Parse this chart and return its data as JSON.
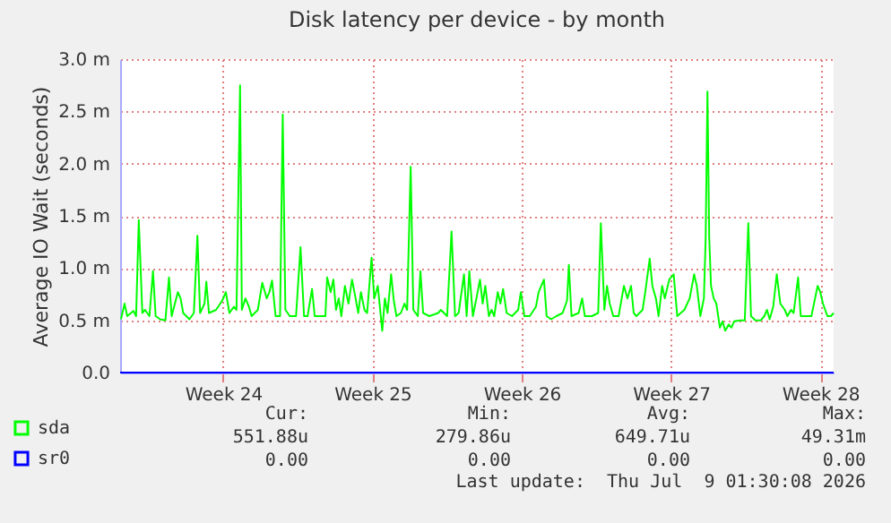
{
  "chart_data": {
    "type": "line",
    "title": "Disk latency per device - by month",
    "ylabel": "Average IO Wait (seconds)",
    "xlim": [
      "2026-06-05T16:00",
      "2026-07-09T03:00"
    ],
    "xticks": [
      {
        "value": "2026-06-10T12:00",
        "label": "Week 24"
      },
      {
        "value": "2026-06-17T12:00",
        "label": "Week 25"
      },
      {
        "value": "2026-06-24T12:00",
        "label": "Week 26"
      },
      {
        "value": "2026-07-01T12:00",
        "label": "Week 27"
      },
      {
        "value": "2026-07-08T12:00",
        "label": "Week 28"
      }
    ],
    "ylim": [
      0,
      3
    ],
    "yticks": [
      {
        "value": 0,
        "label": "0.0"
      },
      {
        "value": 0.5,
        "label": "0.5 m"
      },
      {
        "value": 1,
        "label": "1.0 m"
      },
      {
        "value": 1.5,
        "label": "1.5 m"
      },
      {
        "value": 2,
        "label": "2.0 m"
      },
      {
        "value": 2.5,
        "label": "2.5 m"
      },
      {
        "value": 3,
        "label": "3.0 m"
      }
    ],
    "grid": true,
    "legend": "bottom left",
    "marker": "none",
    "line_style": "solid",
    "series": [
      {
        "name": "sda",
        "color": "#00ff00",
        "x": [
          "2026-06-05T17:00",
          "2026-06-05T21:00",
          "2026-06-06T00:00",
          "2026-06-06T07:00",
          "2026-06-06T10:00",
          "2026-06-06T13:00",
          "2026-06-06T17:00",
          "2026-06-06T20:00",
          "2026-06-07T01:00",
          "2026-06-07T05:00",
          "2026-06-07T08:00",
          "2026-06-07T13:00",
          "2026-06-07T19:00",
          "2026-06-07T23:00",
          "2026-06-08T02:00",
          "2026-06-08T09:00",
          "2026-06-08T12:00",
          "2026-06-08T15:00",
          "2026-06-08T22:00",
          "2026-06-09T03:00",
          "2026-06-09T07:00",
          "2026-06-09T10:00",
          "2026-06-09T15:00",
          "2026-06-09T17:00",
          "2026-06-09T20:00",
          "2026-06-10T04:00",
          "2026-06-10T11:00",
          "2026-06-10T15:00",
          "2026-06-10T19:00",
          "2026-06-11T00:00",
          "2026-06-11T03:00",
          "2026-06-11T07:00",
          "2026-06-11T09:00",
          "2026-06-11T13:00",
          "2026-06-11T17:00",
          "2026-06-11T20:00",
          "2026-06-12T03:00",
          "2026-06-12T08:00",
          "2026-06-12T13:00",
          "2026-06-12T16:00",
          "2026-06-12T19:00",
          "2026-06-12T23:00",
          "2026-06-13T04:00",
          "2026-06-13T07:00",
          "2026-06-13T10:00",
          "2026-06-13T15:00",
          "2026-06-13T22:00",
          "2026-06-14T03:00",
          "2026-06-14T07:00",
          "2026-06-14T11:00",
          "2026-06-14T16:00",
          "2026-06-14T19:00",
          "2026-06-15T07:00",
          "2026-06-15T09:00",
          "2026-06-15T13:00",
          "2026-06-15T16:00",
          "2026-06-15T19:00",
          "2026-06-15T22:00",
          "2026-06-16T01:00",
          "2026-06-16T05:00",
          "2026-06-16T09:00",
          "2026-06-16T13:00",
          "2026-06-16T17:00",
          "2026-06-16T20:00",
          "2026-06-16T23:00",
          "2026-06-17T03:00",
          "2026-06-17T06:00",
          "2026-06-17T11:00",
          "2026-06-17T14:00",
          "2026-06-17T18:00",
          "2026-06-17T23:00",
          "2026-06-18T02:00",
          "2026-06-18T05:00",
          "2026-06-18T09:00",
          "2026-06-18T12:00",
          "2026-06-18T15:00",
          "2026-06-18T20:00",
          "2026-06-19T00:00",
          "2026-06-19T03:00",
          "2026-06-19T07:00",
          "2026-06-19T10:00",
          "2026-06-19T15:00",
          "2026-06-19T18:00",
          "2026-06-19T21:00",
          "2026-06-20T04:00",
          "2026-06-20T14:00",
          "2026-06-20T17:00",
          "2026-06-21T00:00",
          "2026-06-21T05:00",
          "2026-06-21T09:00",
          "2026-06-21T13:00",
          "2026-06-21T19:00",
          "2026-06-21T22:00",
          "2026-06-22T01:00",
          "2026-06-22T05:00",
          "2026-06-22T09:00",
          "2026-06-22T13:00",
          "2026-06-22T16:00",
          "2026-06-22T19:00",
          "2026-06-22T23:00",
          "2026-06-23T02:00",
          "2026-06-23T05:00",
          "2026-06-23T09:00",
          "2026-06-23T12:00",
          "2026-06-23T15:00",
          "2026-06-23T19:00",
          "2026-06-24T01:00",
          "2026-06-24T08:00",
          "2026-06-24T11:00",
          "2026-06-24T15:00",
          "2026-06-24T21:00",
          "2026-06-25T04:00",
          "2026-06-25T07:00",
          "2026-06-25T13:00",
          "2026-06-25T16:00",
          "2026-06-25T21:00",
          "2026-06-26T03:00",
          "2026-06-26T10:00",
          "2026-06-26T15:00",
          "2026-06-26T17:00",
          "2026-06-26T20:00",
          "2026-06-27T04:00",
          "2026-06-27T08:00",
          "2026-06-27T11:00",
          "2026-06-27T19:00",
          "2026-06-28T02:00",
          "2026-06-28T05:00",
          "2026-06-28T09:00",
          "2026-06-28T12:00",
          "2026-06-28T15:00",
          "2026-06-28T19:00",
          "2026-06-29T01:00",
          "2026-06-29T07:00",
          "2026-06-29T11:00",
          "2026-06-29T15:00",
          "2026-06-29T18:00",
          "2026-06-29T21:00",
          "2026-06-30T04:00",
          "2026-06-30T07:00",
          "2026-06-30T12:00",
          "2026-06-30T15:00",
          "2026-06-30T19:00",
          "2026-06-30T22:00",
          "2026-07-01T02:00",
          "2026-07-01T05:00",
          "2026-07-01T10:00",
          "2026-07-01T15:00",
          "2026-07-01T19:00",
          "2026-07-01T23:00",
          "2026-07-02T03:00",
          "2026-07-02T09:00",
          "2026-07-02T14:00",
          "2026-07-02T17:00",
          "2026-07-02T21:00",
          "2026-07-03T01:00",
          "2026-07-03T03:00",
          "2026-07-03T05:00",
          "2026-07-03T07:00",
          "2026-07-03T09:00",
          "2026-07-03T12:00",
          "2026-07-03T15:00",
          "2026-07-03T19:00",
          "2026-07-03T22:00",
          "2026-07-04T01:00",
          "2026-07-04T05:00",
          "2026-07-04T08:00",
          "2026-07-04T11:00",
          "2026-07-04T18:00",
          "2026-07-04T23:00",
          "2026-07-05T03:00",
          "2026-07-05T06:00",
          "2026-07-05T11:00",
          "2026-07-05T17:00",
          "2026-07-05T21:00",
          "2026-07-06T00:00",
          "2026-07-06T03:00",
          "2026-07-06T07:00",
          "2026-07-06T11:00",
          "2026-07-06T15:00",
          "2026-07-06T20:00",
          "2026-07-06T23:00",
          "2026-07-07T03:00",
          "2026-07-07T06:00",
          "2026-07-07T11:00",
          "2026-07-07T14:00",
          "2026-07-08T02:00",
          "2026-07-08T09:00",
          "2026-07-08T12:00",
          "2026-07-08T15:00",
          "2026-07-08T20:00",
          "2026-07-09T00:00",
          "2026-07-09T03:00"
        ],
        "values": [
          0.51,
          0.66,
          0.54,
          0.59,
          0.54,
          1.46,
          0.57,
          0.6,
          0.54,
          0.97,
          0.54,
          0.51,
          0.5,
          0.91,
          0.54,
          0.77,
          0.71,
          0.57,
          0.51,
          0.57,
          1.31,
          0.57,
          0.66,
          0.87,
          0.57,
          0.6,
          0.69,
          0.77,
          0.57,
          0.63,
          0.6,
          2.75,
          0.6,
          0.71,
          0.63,
          0.54,
          0.6,
          0.86,
          0.71,
          0.77,
          0.88,
          0.54,
          0.54,
          2.47,
          0.6,
          0.54,
          0.54,
          1.2,
          0.54,
          0.54,
          0.8,
          0.54,
          0.54,
          0.91,
          0.77,
          0.89,
          0.6,
          0.71,
          0.54,
          0.83,
          0.66,
          0.89,
          0.71,
          0.57,
          0.77,
          0.6,
          0.57,
          1.1,
          0.71,
          0.83,
          0.4,
          0.71,
          0.57,
          0.94,
          0.69,
          0.54,
          0.57,
          0.66,
          0.6,
          1.97,
          0.6,
          0.54,
          0.97,
          0.57,
          0.54,
          0.57,
          0.6,
          0.54,
          1.35,
          0.54,
          0.57,
          0.94,
          0.54,
          0.97,
          0.54,
          0.71,
          0.89,
          0.66,
          0.83,
          0.54,
          0.6,
          0.54,
          0.77,
          0.66,
          0.8,
          0.57,
          0.54,
          0.6,
          0.77,
          0.54,
          0.54,
          0.63,
          0.77,
          0.89,
          0.54,
          0.51,
          0.54,
          0.57,
          0.69,
          1.03,
          0.54,
          0.57,
          0.71,
          0.54,
          0.54,
          0.57,
          1.43,
          0.6,
          0.83,
          0.66,
          0.54,
          0.54,
          0.83,
          0.71,
          0.83,
          0.57,
          0.54,
          0.6,
          0.77,
          1.09,
          0.83,
          0.71,
          0.54,
          0.83,
          0.71,
          0.89,
          0.94,
          0.54,
          0.57,
          0.6,
          0.71,
          0.94,
          0.83,
          0.54,
          0.71,
          1.29,
          2.69,
          1.29,
          0.83,
          0.71,
          0.66,
          0.43,
          0.49,
          0.4,
          0.46,
          0.43,
          0.49,
          0.5,
          0.5,
          1.43,
          0.54,
          0.5,
          0.5,
          0.54,
          0.6,
          0.51,
          0.63,
          0.94,
          0.66,
          0.6,
          0.54,
          0.6,
          0.57,
          0.91,
          0.54,
          0.54,
          0.83,
          0.77,
          0.66,
          0.54,
          0.54,
          0.57
        ]
      },
      {
        "name": "sr0",
        "color": "#0000ff",
        "x": [
          "2026-06-05T16:00",
          "2026-07-09T03:00"
        ],
        "values": [
          0,
          0
        ]
      }
    ],
    "annotations": [
      "Cur:",
      "Min:",
      "Avg:",
      "Max:",
      "551.88u",
      "279.86u",
      "649.71u",
      "49.31m",
      "0.00",
      "0.00",
      "0.00",
      "0.00",
      "Last update:  Thu Jul  9 01:30:08 2026"
    ]
  }
}
